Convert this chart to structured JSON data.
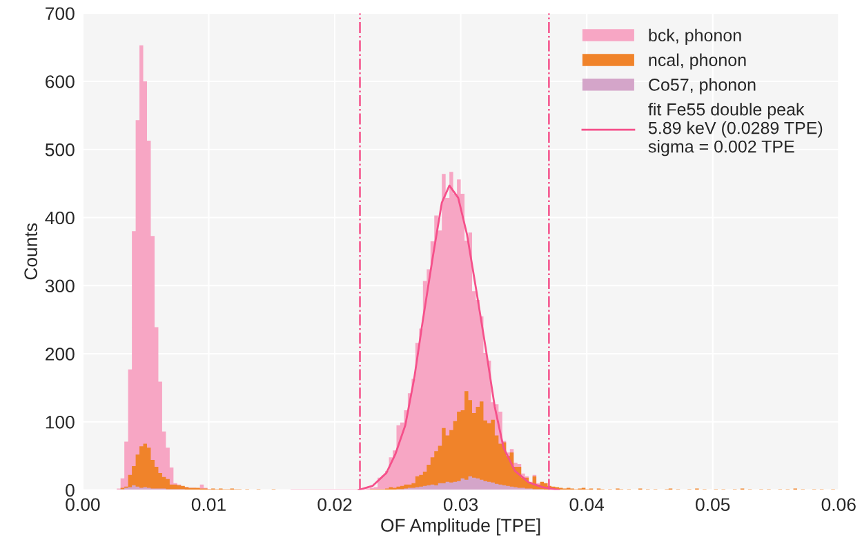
{
  "chart_data": {
    "type": "histogram",
    "xlabel": "OF Amplitude [TPE]",
    "ylabel": "Counts",
    "bins": [
      0.0027,
      0.003,
      0.0033,
      0.0036,
      0.0039,
      0.0042,
      0.0045,
      0.0048,
      0.0051,
      0.0054,
      0.0057,
      0.006,
      0.0063,
      0.0066,
      0.0069,
      0.0072,
      0.0075,
      0.0078,
      0.0081,
      0.0084,
      0.0087,
      0.009,
      0.0093,
      0.0096,
      0.0099,
      0.0102,
      0.0105,
      0.0108,
      0.0111,
      0.0114,
      0.0117,
      0.012,
      0.0123,
      0.0126,
      0.0129,
      0.0132,
      0.0135,
      0.0138,
      0.0141,
      0.0144,
      0.0147,
      0.015,
      0.0153,
      0.0156,
      0.0159,
      0.0162,
      0.0165,
      0.0168,
      0.0171,
      0.0174,
      0.0177,
      0.018,
      0.0183,
      0.0186,
      0.0189,
      0.0192,
      0.0195,
      0.0198,
      0.0201,
      0.0204,
      0.0207,
      0.021,
      0.0213,
      0.0216,
      0.0219,
      0.0222,
      0.0225,
      0.0228,
      0.0231,
      0.0234,
      0.0237,
      0.024,
      0.0243,
      0.0246,
      0.0249,
      0.0252,
      0.0255,
      0.0258,
      0.0261,
      0.0264,
      0.0267,
      0.027,
      0.0273,
      0.0276,
      0.0279,
      0.0282,
      0.0285,
      0.0288,
      0.0291,
      0.0294,
      0.0297,
      0.03,
      0.0303,
      0.0306,
      0.0309,
      0.0312,
      0.0315,
      0.0318,
      0.0321,
      0.0324,
      0.0327,
      0.033,
      0.0333,
      0.0336,
      0.0339,
      0.0342,
      0.0345,
      0.0348,
      0.0351,
      0.0354,
      0.0357,
      0.036,
      0.0363,
      0.0366,
      0.0369,
      0.0372,
      0.0375,
      0.0378,
      0.0381,
      0.0384,
      0.0387,
      0.039,
      0.0393,
      0.0396,
      0.0399,
      0.0402,
      0.0405,
      0.0408,
      0.0411,
      0.0414,
      0.0417,
      0.042,
      0.0423,
      0.0426,
      0.0429,
      0.0432,
      0.0435,
      0.0438,
      0.0441,
      0.0444,
      0.0447,
      0.045,
      0.0453,
      0.0456,
      0.0459,
      0.0462,
      0.0465,
      0.0468,
      0.0471,
      0.0474,
      0.0477,
      0.048,
      0.0483,
      0.0486,
      0.0489,
      0.0492,
      0.0495,
      0.0498,
      0.0501,
      0.0504,
      0.0507,
      0.051,
      0.0513,
      0.0516,
      0.0519,
      0.0522,
      0.0525,
      0.0528,
      0.0531,
      0.0534,
      0.0537,
      0.054,
      0.0543,
      0.0546,
      0.0549,
      0.0552,
      0.0555,
      0.0558,
      0.0561,
      0.0564,
      0.0567,
      0.057,
      0.0573,
      0.0576,
      0.0579,
      0.0582,
      0.0585,
      0.0588,
      0.0591,
      0.0594,
      0.0597,
      0.06
    ],
    "series": [
      {
        "name": "bck, phonon",
        "color": "#f7a6c4",
        "values": [
          2,
          17,
          71,
          177,
          380,
          543,
          653,
          600,
          513,
          373,
          239,
          159,
          86,
          62,
          33,
          10,
          8,
          5,
          4,
          3,
          3,
          2,
          8,
          3,
          1,
          0,
          0,
          0,
          0,
          0,
          0,
          0,
          0,
          0,
          0,
          0,
          0,
          0,
          0,
          0,
          0,
          0,
          0,
          0,
          0,
          0,
          1,
          1,
          1,
          1,
          1,
          1,
          1,
          1,
          1,
          1,
          1,
          1,
          1,
          1,
          1,
          1,
          1,
          1,
          1,
          1,
          2,
          3,
          4,
          18,
          21,
          28,
          48,
          58,
          95,
          99,
          117,
          142,
          163,
          216,
          237,
          307,
          324,
          365,
          403,
          381,
          464,
          429,
          467,
          435,
          456,
          435,
          366,
          378,
          292,
          279,
          255,
          201,
          190,
          129,
          126,
          115,
          72,
          55,
          60,
          40,
          38,
          24,
          20,
          12,
          22,
          10,
          3,
          2,
          1,
          1,
          1,
          0,
          0,
          0,
          0,
          0,
          0,
          0,
          0,
          0,
          0,
          0,
          0,
          0,
          0,
          0,
          0,
          0,
          0,
          0,
          0,
          0,
          0,
          0,
          0,
          0,
          0,
          0,
          0,
          0,
          0,
          0,
          0,
          0,
          0,
          0,
          0,
          0,
          0,
          0,
          0,
          0,
          0,
          0,
          0,
          0,
          0,
          0,
          0,
          0,
          0,
          0,
          0,
          0,
          0,
          0,
          0,
          0,
          0,
          0,
          0,
          0,
          0,
          0,
          0,
          0,
          0,
          0,
          0,
          0,
          0,
          0,
          0,
          0,
          0
        ]
      },
      {
        "name": "ncal, phonon",
        "color": "#f0832a",
        "values": [
          0,
          3,
          5,
          22,
          35,
          52,
          64,
          68,
          62,
          44,
          34,
          25,
          19,
          16,
          8,
          8,
          7,
          6,
          4,
          3,
          3,
          3,
          2,
          2,
          1,
          2,
          1,
          2,
          1,
          1,
          2,
          1,
          1,
          0,
          1,
          0,
          0,
          1,
          0,
          0,
          0,
          1,
          0,
          0,
          0,
          0,
          0,
          0,
          0,
          0,
          0,
          0,
          0,
          0,
          0,
          0,
          0,
          0,
          0,
          0,
          0,
          0,
          0,
          0,
          0,
          0,
          0,
          1,
          1,
          1,
          1,
          2,
          4,
          3,
          5,
          6,
          8,
          8,
          10,
          20,
          22,
          27,
          37,
          48,
          57,
          65,
          91,
          80,
          88,
          101,
          115,
          117,
          145,
          132,
          113,
          122,
          130,
          102,
          98,
          103,
          80,
          68,
          70,
          50,
          55,
          34,
          34,
          18,
          18,
          10,
          20,
          8,
          12,
          10,
          6,
          5,
          4,
          3,
          2,
          3,
          2,
          1,
          2,
          3,
          1,
          2,
          0,
          2,
          1,
          0,
          1,
          0,
          2,
          1,
          0,
          1,
          0,
          0,
          2,
          0,
          1,
          0,
          1,
          0,
          0,
          1,
          2,
          0,
          1,
          0,
          0,
          1,
          0,
          2,
          0,
          1,
          0,
          0,
          1,
          0,
          1,
          0,
          0,
          1,
          0,
          2,
          0,
          1,
          0,
          0,
          1,
          0,
          1,
          0,
          0,
          1,
          0,
          1,
          0,
          2,
          0,
          1,
          0,
          0,
          1,
          0,
          1,
          0,
          0,
          1,
          0
        ]
      },
      {
        "name": "Co57, phonon",
        "color": "#d4a5c9",
        "values": [
          0,
          1,
          3,
          4,
          7,
          5,
          3,
          4,
          3,
          2,
          2,
          2,
          2,
          1,
          1,
          1,
          1,
          1,
          0,
          0,
          0,
          0,
          0,
          0,
          0,
          0,
          0,
          0,
          0,
          0,
          0,
          0,
          0,
          0,
          0,
          0,
          0,
          0,
          0,
          0,
          0,
          0,
          0,
          0,
          0,
          0,
          0,
          0,
          0,
          0,
          0,
          0,
          0,
          0,
          0,
          0,
          0,
          0,
          0,
          0,
          0,
          0,
          0,
          0,
          0,
          0,
          0,
          0,
          0,
          0,
          0,
          0,
          0,
          0,
          1,
          1,
          2,
          3,
          3,
          4,
          5,
          6,
          7,
          8,
          7,
          10,
          10,
          12,
          11,
          12,
          13,
          17,
          15,
          20,
          18,
          17,
          15,
          13,
          12,
          11,
          9,
          8,
          7,
          6,
          5,
          4,
          3,
          3,
          2,
          2,
          1,
          1,
          1,
          0,
          0,
          0,
          0,
          0,
          0,
          0,
          0,
          0,
          0,
          0,
          0,
          0,
          0,
          0,
          0,
          0,
          0,
          0,
          0,
          0,
          0,
          0,
          0,
          0,
          0,
          0,
          0,
          0,
          0,
          0,
          0,
          0,
          0,
          0,
          0,
          0,
          0,
          0,
          0,
          0,
          0,
          0,
          0,
          0,
          0,
          0,
          0,
          0,
          0,
          0,
          0,
          0,
          0,
          0,
          0,
          0,
          0,
          0,
          0,
          0,
          0,
          0,
          0,
          0,
          0,
          0,
          0,
          0,
          0,
          0,
          0,
          0,
          0,
          0,
          0,
          0,
          0
        ]
      },
      {
        "type": "line",
        "name": "fit Fe55 double peak\n5.89 keV (0.0289 TPE)\nsigma = 0.002 TPE",
        "color": "#f5508a",
        "x": [
          0.0219,
          0.023,
          0.0241,
          0.0248,
          0.0256,
          0.0263,
          0.027,
          0.0278,
          0.0285,
          0.0291,
          0.0298,
          0.0305,
          0.0312,
          0.032,
          0.0327,
          0.0334,
          0.0343,
          0.0354,
          0.0365,
          0.0378
        ],
        "values": [
          0,
          6,
          25,
          52,
          95,
          163,
          250,
          344,
          422,
          447,
          429,
          375,
          297,
          206,
          122,
          62,
          28,
          11,
          4,
          0
        ]
      }
    ],
    "ref_lines": [
      {
        "axis": "x",
        "value": 0.022,
        "color": "#f5508a",
        "line_style": "dashdot"
      },
      {
        "axis": "x",
        "value": 0.037,
        "color": "#f5508a",
        "line_style": "dashdot"
      }
    ],
    "xlim": [
      0,
      0.06
    ],
    "ylim": [
      0,
      700
    ],
    "xticks": [
      {
        "value": 0,
        "label": "0.00"
      },
      {
        "value": 0.01,
        "label": "0.01"
      },
      {
        "value": 0.02,
        "label": "0.02"
      },
      {
        "value": 0.03,
        "label": "0.03"
      },
      {
        "value": 0.04,
        "label": "0.04"
      },
      {
        "value": 0.05,
        "label": "0.05"
      },
      {
        "value": 0.06,
        "label": "0.06"
      }
    ],
    "yticks": [
      0,
      100,
      200,
      300,
      400,
      500,
      600,
      700
    ],
    "grid": true,
    "legend": "top right"
  }
}
